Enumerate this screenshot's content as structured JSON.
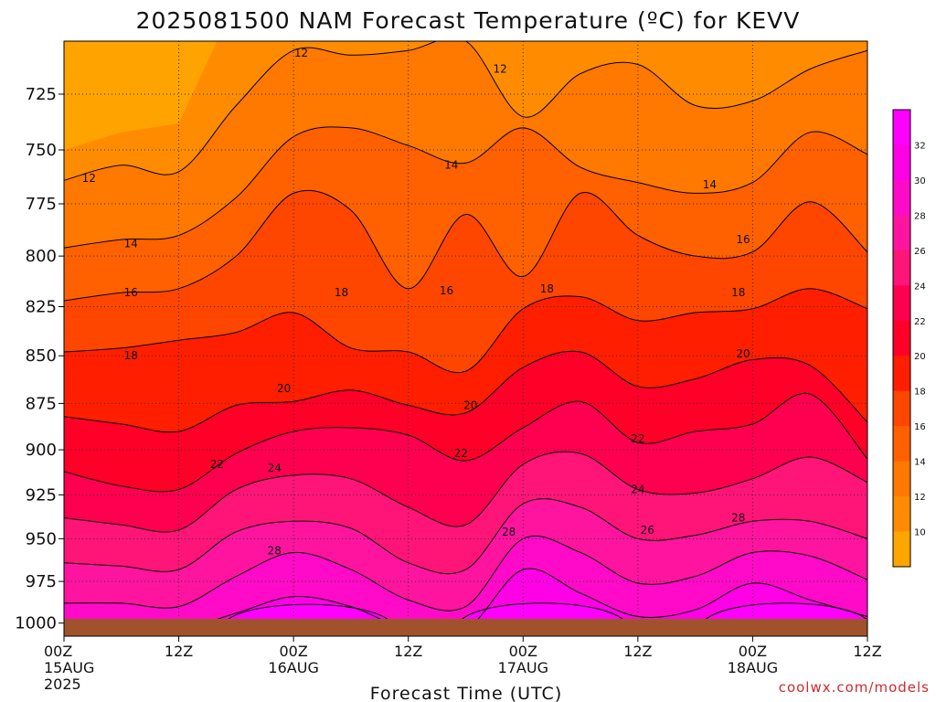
{
  "chart_data": {
    "type": "heatmap",
    "title": "2025081500 NAM Forecast Temperature (ºC) for KEVV",
    "xlabel": "Forecast Time (UTC)",
    "ylabel": "",
    "credit": "coolwx.com/models",
    "x_ticks": [
      {
        "hour": 0,
        "lines": [
          "00Z",
          "15AUG",
          "2025"
        ]
      },
      {
        "hour": 12,
        "lines": [
          "12Z"
        ]
      },
      {
        "hour": 24,
        "lines": [
          "00Z",
          "16AUG"
        ]
      },
      {
        "hour": 36,
        "lines": [
          "12Z"
        ]
      },
      {
        "hour": 48,
        "lines": [
          "00Z",
          "17AUG"
        ]
      },
      {
        "hour": 60,
        "lines": [
          "12Z"
        ]
      },
      {
        "hour": 72,
        "lines": [
          "00Z",
          "18AUG"
        ]
      },
      {
        "hour": 84,
        "lines": [
          "12Z"
        ]
      }
    ],
    "x_range_hours": [
      0,
      84
    ],
    "y_ticks_hPa": [
      725,
      750,
      775,
      800,
      825,
      850,
      875,
      900,
      925,
      950,
      975,
      1000
    ],
    "y_range_hPa": [
      702,
      1008
    ],
    "grid": true,
    "colorbar_levels": [
      10,
      12,
      14,
      16,
      18,
      20,
      22,
      24,
      26,
      28,
      30,
      32
    ],
    "color_bands": [
      "#ffa500",
      "#ff8c00",
      "#ff7800",
      "#ff6000",
      "#ff4600",
      "#ff1e00",
      "#ff0028",
      "#ff0050",
      "#ff1478",
      "#ff14a0",
      "#ff0ac8",
      "#ff00e6",
      "#ff00ff"
    ],
    "contour_levels": [
      12,
      14,
      16,
      18,
      20,
      22,
      24,
      26,
      28,
      30,
      32
    ],
    "isotherm_pressure_hPa": {
      "x_hours": [
        0,
        6,
        12,
        18,
        24,
        30,
        36,
        42,
        48,
        54,
        60,
        66,
        72,
        78,
        84
      ],
      "levels": {
        "12": [
          764,
          757,
          760,
          730,
          706,
          708,
          706,
          702,
          735,
          716,
          712,
          730,
          728,
          714,
          706
        ],
        "14": [
          796,
          792,
          790,
          772,
          744,
          740,
          748,
          756,
          740,
          758,
          765,
          770,
          765,
          742,
          752
        ],
        "16": [
          822,
          818,
          816,
          800,
          770,
          778,
          816,
          780,
          810,
          770,
          790,
          800,
          798,
          774,
          798
        ],
        "18": [
          848,
          846,
          842,
          838,
          828,
          846,
          848,
          858,
          826,
          820,
          832,
          828,
          826,
          816,
          826
        ],
        "20": [
          882,
          886,
          890,
          876,
          874,
          868,
          876,
          880,
          856,
          848,
          866,
          862,
          852,
          855,
          885
        ],
        "22": [
          912,
          920,
          922,
          902,
          890,
          888,
          892,
          906,
          888,
          874,
          896,
          890,
          886,
          870,
          905
        ],
        "24": [
          938,
          942,
          945,
          922,
          914,
          916,
          932,
          942,
          908,
          902,
          922,
          924,
          916,
          904,
          918
        ],
        "26": [
          964,
          966,
          968,
          946,
          940,
          944,
          964,
          968,
          930,
          932,
          950,
          948,
          940,
          940,
          950
        ],
        "28": [
          988,
          988,
          990,
          972,
          958,
          968,
          986,
          990,
          950,
          958,
          976,
          972,
          958,
          960,
          974
        ],
        "30": [
          1004,
          1004,
          1004,
          994,
          984,
          990,
          1004,
          1004,
          968,
          982,
          996,
          992,
          976,
          986,
          996
        ]
      }
    },
    "pools_32C": [
      {
        "center_hour": 25.5,
        "min_hPa": 987
      },
      {
        "center_hour": 50,
        "min_hPa": 986
      },
      {
        "center_hour": 75.5,
        "min_hPa": 986
      }
    ],
    "contour_labels": [
      {
        "text": "12",
        "hour": 2.6,
        "hPa": 763
      },
      {
        "text": "12",
        "hour": 24.8,
        "hPa": 707
      },
      {
        "text": "12",
        "hour": 45.6,
        "hPa": 714
      },
      {
        "text": "14",
        "hour": 7,
        "hPa": 794
      },
      {
        "text": "14",
        "hour": 40.5,
        "hPa": 757
      },
      {
        "text": "14",
        "hour": 67.5,
        "hPa": 766
      },
      {
        "text": "16",
        "hour": 7,
        "hPa": 818
      },
      {
        "text": "16",
        "hour": 40,
        "hPa": 817
      },
      {
        "text": "16",
        "hour": 71,
        "hPa": 792
      },
      {
        "text": "18",
        "hour": 7,
        "hPa": 850
      },
      {
        "text": "18",
        "hour": 29,
        "hPa": 818
      },
      {
        "text": "18",
        "hour": 50.5,
        "hPa": 816
      },
      {
        "text": "18",
        "hour": 70.5,
        "hPa": 818
      },
      {
        "text": "20",
        "hour": 23,
        "hPa": 867
      },
      {
        "text": "20",
        "hour": 42.5,
        "hPa": 876
      },
      {
        "text": "20",
        "hour": 71,
        "hPa": 849
      },
      {
        "text": "22",
        "hour": 16,
        "hPa": 908
      },
      {
        "text": "22",
        "hour": 41.5,
        "hPa": 902
      },
      {
        "text": "22",
        "hour": 60,
        "hPa": 894
      },
      {
        "text": "24",
        "hour": 22,
        "hPa": 910
      },
      {
        "text": "24",
        "hour": 60,
        "hPa": 922
      },
      {
        "text": "26",
        "hour": 61,
        "hPa": 945
      },
      {
        "text": "28",
        "hour": 22,
        "hPa": 957
      },
      {
        "text": "28",
        "hour": 46.5,
        "hPa": 946
      },
      {
        "text": "28",
        "hour": 70.5,
        "hPa": 938
      }
    ],
    "ground_color": "#a0522d"
  }
}
